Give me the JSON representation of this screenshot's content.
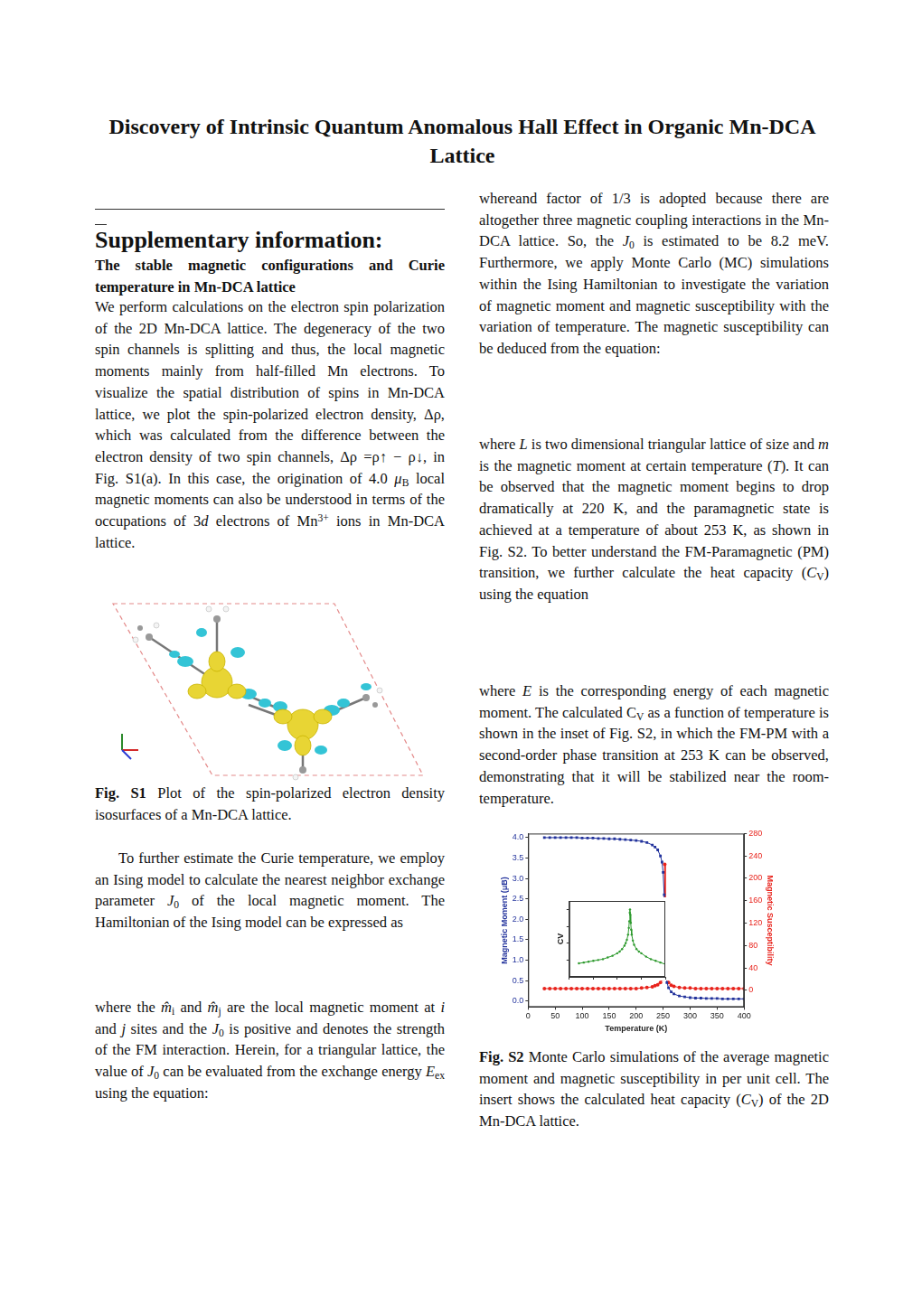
{
  "title": "Discovery of Intrinsic Quantum Anomalous Hall Effect in Organic Mn-DCA Lattice",
  "section_title": "Supplementary information:",
  "subsection_title": "The stable magnetic configurations and Curie temperature in Mn-DCA lattice",
  "paragraphs": {
    "intro": [
      "We perform calculations on the electron spin polarization of the 2D Mn-DCA lattice. The degeneracy of the two spin channels is splitting and thus, the local magnetic moments mainly from half-filled Mn electrons. To visualize the spatial distribution of spins in Mn-DCA lattice, we plot the spin-polarized electron density, Δρ, which was calculated from the difference between the electron density of two spin channels, Δρ =ρ↑ − ρ↓, in Fig. S1(a). In this case, the origination of 4.0 ",
      {
        "text": "μ",
        "style": "italic"
      },
      {
        "text": "B",
        "style": "sub"
      },
      " local magnetic moments can also be understood in terms of the occupations of 3",
      {
        "text": "d",
        "style": "italic"
      },
      " electrons of Mn",
      {
        "text": "3+",
        "style": "sup"
      },
      " ions in Mn-DCA lattice."
    ],
    "ising": [
      "To further estimate the Curie temperature, we employ an Ising model to calculate the nearest neighbor exchange parameter ",
      {
        "text": "J",
        "style": "italic"
      },
      {
        "text": "0",
        "style": "sub"
      },
      " of the local magnetic moment. The Hamiltonian of the Ising model can be expressed as"
    ],
    "exchange": [
      "where the ",
      {
        "text": "m̂",
        "style": "italic"
      },
      {
        "text": "i",
        "style": "sub"
      },
      " and ",
      {
        "text": "m̂",
        "style": "italic"
      },
      {
        "text": "j",
        "style": "sub"
      },
      " are the local magnetic moment at ",
      {
        "text": "i",
        "style": "italic"
      },
      " and ",
      {
        "text": "j",
        "style": "italic"
      },
      " sites and the ",
      {
        "text": "J",
        "style": "italic"
      },
      {
        "text": "0",
        "style": "sub"
      },
      " is positive and denotes the strength of the FM interaction. Herein, for a triangular lattice, the value of ",
      {
        "text": "J",
        "style": "italic"
      },
      {
        "text": "0",
        "style": "sub"
      },
      " can be evaluated from the exchange energy ",
      {
        "text": "E",
        "style": "italic"
      },
      {
        "text": "ex",
        "style": "sub"
      },
      " using the equation:"
    ],
    "factor": [
      "whereand factor of 1/3 is adopted because there are altogether three magnetic coupling interactions in the Mn-DCA lattice. So, the ",
      {
        "text": "J",
        "style": "italic"
      },
      {
        "text": "0",
        "style": "sub"
      },
      " is estimated to be 8.2 meV. Furthermore, we apply Monte Carlo (MC) simulations within the Ising Hamiltonian to investigate the variation of magnetic moment and magnetic susceptibility with the variation of temperature. The magnetic susceptibility can be deduced from the equation:"
    ],
    "susceptibility": [
      "where ",
      {
        "text": "L",
        "style": "italic"
      },
      " is two dimensional triangular lattice of size and ",
      {
        "text": "m",
        "style": "italic"
      },
      " is the magnetic moment at certain temperature (",
      {
        "text": "T",
        "style": "italic"
      },
      "). It can be observed that the magnetic moment begins to drop dramatically at 220 K, and the paramagnetic state is achieved at a temperature of about 253 K, as shown in Fig. S2. To better understand the FM-Paramagnetic (PM) transition, we further calculate the heat capacity (",
      {
        "text": "C",
        "style": "italic"
      },
      {
        "text": "V",
        "style": "sub"
      },
      ") using the equation"
    ],
    "heat_capacity": [
      "where ",
      {
        "text": "E",
        "style": "italic"
      },
      " is the corresponding energy of each magnetic moment. The calculated C",
      {
        "text": "V",
        "style": "sub"
      },
      " as a function of temperature is shown in the inset of Fig. S2, in which the FM-PM with a second-order phase transition at 253 K can be observed, demonstrating that it will be stabilized near the room-temperature."
    ]
  },
  "figure_s1_caption": [
    {
      "text": "Fig. S1",
      "style": "bold"
    },
    " Plot of the spin-polarized electron density isosurfaces of a Mn-DCA lattice."
  ],
  "figure_s2_caption": [
    {
      "text": "Fig. S2",
      "style": "bold"
    },
    " Monte Carlo simulations of the average magnetic moment and magnetic susceptibility in per unit cell. The insert shows the calculated heat capacity (",
    {
      "text": "C",
      "style": "italic"
    },
    {
      "text": "V",
      "style": "sub"
    },
    ") of the 2D Mn-DCA lattice."
  ],
  "chart_data": [
    {
      "type": "line",
      "xlabel": "Temperature (K)",
      "ylabel": "Magnetic Moment (μB)",
      "y2label": "Magnetic Susceptibility",
      "grid": false,
      "x": [
        30,
        40,
        50,
        60,
        70,
        80,
        90,
        100,
        110,
        120,
        130,
        140,
        150,
        160,
        170,
        180,
        190,
        200,
        210,
        220,
        230,
        235,
        240,
        245,
        248,
        250,
        252,
        253,
        254,
        255,
        257,
        260,
        265,
        270,
        280,
        290,
        300,
        310,
        320,
        330,
        340,
        350,
        360,
        370,
        380,
        390,
        400
      ],
      "series": [
        {
          "color": "#23339c",
          "marker": "square",
          "line_style": "solid",
          "values": [
            4.0,
            4.0,
            4.0,
            4.0,
            4.0,
            4.0,
            4.0,
            3.99,
            3.99,
            3.99,
            3.98,
            3.98,
            3.97,
            3.97,
            3.96,
            3.95,
            3.94,
            3.93,
            3.91,
            3.88,
            3.82,
            3.77,
            3.7,
            3.55,
            3.4,
            3.15,
            2.6,
            1.6,
            1.05,
            0.75,
            0.45,
            0.32,
            0.22,
            0.17,
            0.12,
            0.1,
            0.08,
            0.07,
            0.07,
            0.06,
            0.06,
            0.06,
            0.05,
            0.05,
            0.05,
            0.05,
            0.05
          ]
        },
        {
          "color": "#e8231c",
          "marker": "circle",
          "line_style": "solid",
          "axis": "y2",
          "values": [
            3,
            3,
            3,
            3,
            3,
            3,
            3,
            3,
            3,
            3,
            3,
            3,
            3,
            3,
            3,
            3,
            3,
            3,
            4,
            5,
            6,
            8,
            10,
            14,
            20,
            30,
            60,
            225,
            95,
            45,
            22,
            14,
            9,
            7,
            5,
            4,
            4,
            3,
            3,
            3,
            3,
            3,
            3,
            3,
            3,
            3,
            3
          ]
        }
      ],
      "xlim": [
        0,
        400
      ],
      "xticks": [
        0,
        50,
        100,
        150,
        200,
        250,
        300,
        350,
        400
      ],
      "ylim": [
        -0.15,
        4.1
      ],
      "yticks": [
        {
          "value": 0,
          "label": "0.0"
        },
        0.5,
        {
          "value": 1,
          "label": "1.0"
        },
        1.5,
        {
          "value": 2,
          "label": "2.0"
        },
        2.5,
        {
          "value": 3,
          "label": "3.0"
        },
        3.5,
        {
          "value": 4,
          "label": "4.0"
        }
      ],
      "y2lim": [
        -30,
        280
      ],
      "y2ticks": [
        0,
        40,
        80,
        120,
        160,
        200,
        240,
        280
      ]
    },
    {
      "type": "line",
      "ylabel": "CV",
      "grid": false,
      "tick_labels": false,
      "x": [
        40,
        60,
        80,
        100,
        120,
        140,
        160,
        180,
        200,
        210,
        220,
        230,
        235,
        240,
        245,
        248,
        250,
        252,
        253,
        254,
        256,
        258,
        260,
        265,
        270,
        280,
        290,
        300,
        320,
        340,
        360,
        380,
        400
      ],
      "series": [
        {
          "color": "#2e9a2e",
          "marker": "circle",
          "line_style": "solid",
          "values": [
            0.36,
            0.37,
            0.38,
            0.39,
            0.4,
            0.41,
            0.43,
            0.45,
            0.48,
            0.5,
            0.53,
            0.57,
            0.6,
            0.64,
            0.7,
            0.78,
            0.86,
            0.96,
            1.0,
            0.94,
            0.84,
            0.76,
            0.7,
            0.63,
            0.58,
            0.53,
            0.5,
            0.48,
            0.44,
            0.41,
            0.39,
            0.37,
            0.35
          ]
        }
      ],
      "xlim": [
        0,
        400
      ],
      "xticks": [
        0,
        100,
        200,
        300,
        400
      ],
      "ylim": [
        0.2,
        1.1
      ],
      "yticks": [
        0.4,
        0.6,
        0.8,
        1
      ]
    }
  ]
}
